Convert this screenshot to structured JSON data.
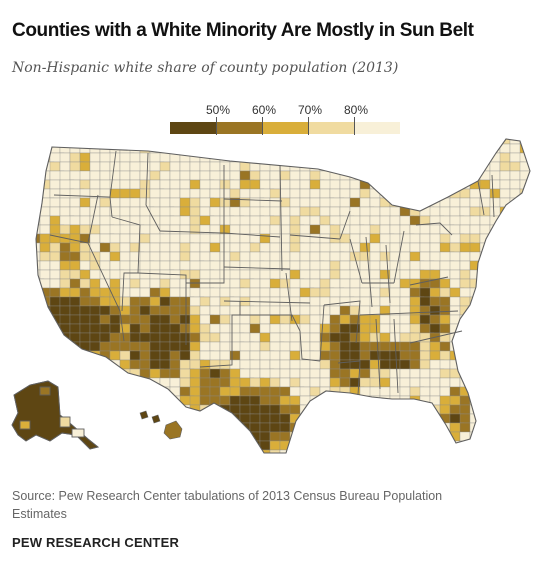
{
  "title": "Counties with a White Minority Are Mostly in Sun Belt",
  "subtitle": "Non-Hispanic white share of county population (2013)",
  "legend": {
    "labels": [
      "50%",
      "60%",
      "70%",
      "80%"
    ],
    "colors": [
      "#5e4613",
      "#9a7524",
      "#d9ae3a",
      "#f0dba0",
      "#f8f0d8"
    ]
  },
  "colors": {
    "border": "#8a8a8a",
    "state_border": "#5f5f5f",
    "background": "#ffffff"
  },
  "source": "Source: Pew Research Center tabulations of 2013 Census Bureau Population Estimates",
  "org": "PEW RESEARCH CENTER"
}
